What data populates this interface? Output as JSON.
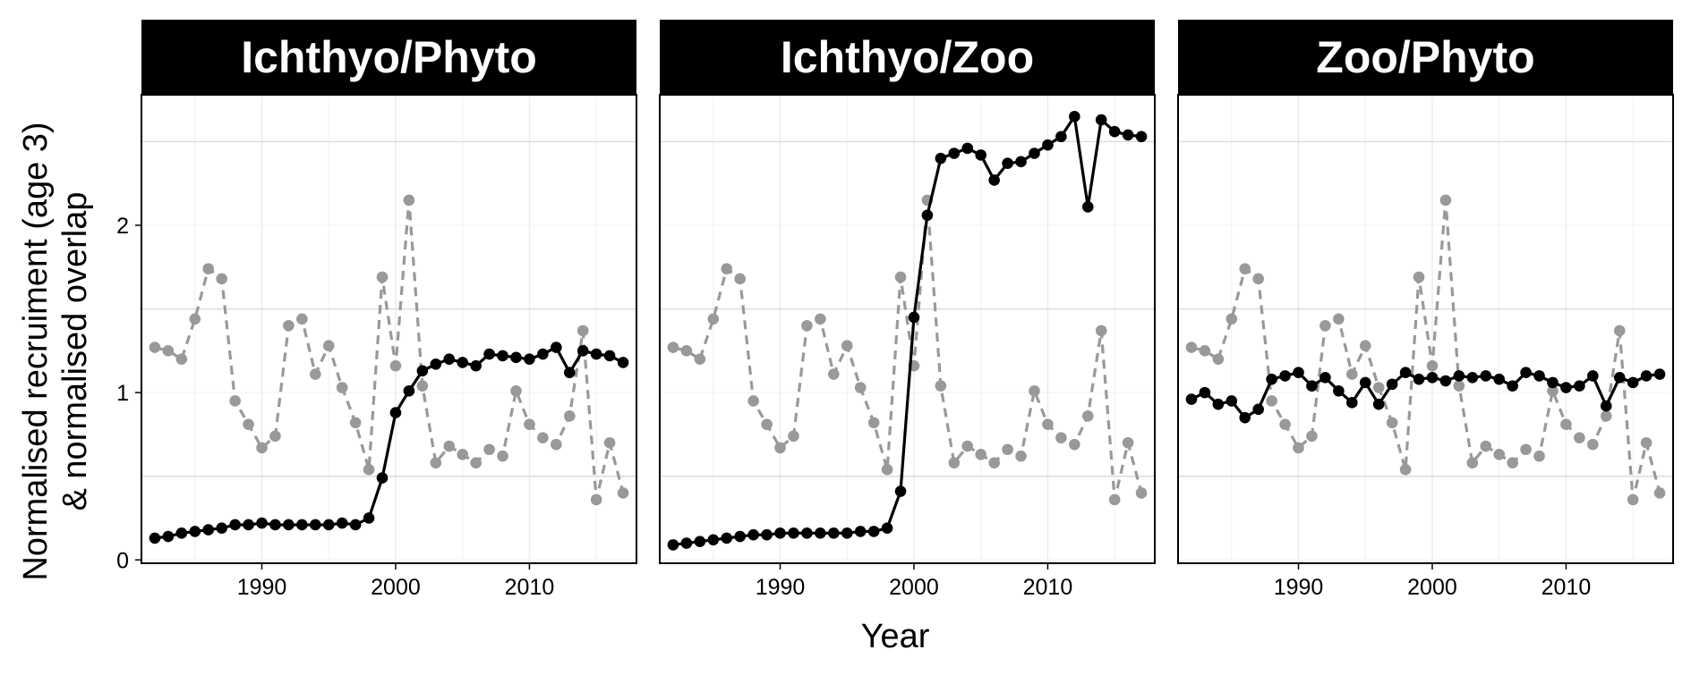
{
  "chart_data": {
    "type": "line",
    "xlabel": "Year",
    "ylabel_lines": [
      "Normalised recruiment (age 3)",
      "& normalised overlap"
    ],
    "xlim": [
      1981,
      2018
    ],
    "ylim": [
      -0.02,
      2.78
    ],
    "x_ticks": [
      1990,
      2000,
      2010
    ],
    "x_tick_labels": [
      "1990",
      "2000",
      "2010"
    ],
    "y_ticks": [
      0,
      1,
      2
    ],
    "y_tick_labels": [
      "0",
      "1",
      "2"
    ],
    "y_minor_gridlines": [
      0.5,
      1.5,
      2.5
    ],
    "colors": {
      "overlap": "#000000",
      "recruitment": "#999999",
      "strip_bg": "#000000",
      "strip_text": "#ffffff",
      "grid": "#d9d9d9"
    },
    "recruitment_series": {
      "name": "Normalised recruitment (age 3)",
      "style": "dashed",
      "x": [
        1982,
        1983,
        1984,
        1985,
        1986,
        1987,
        1988,
        1989,
        1990,
        1991,
        1992,
        1993,
        1994,
        1995,
        1996,
        1997,
        1998,
        1999,
        2000,
        2001,
        2002,
        2003,
        2004,
        2005,
        2006,
        2007,
        2008,
        2009,
        2010,
        2011,
        2012,
        2013,
        2014,
        2015,
        2016,
        2017
      ],
      "values": [
        1.27,
        1.25,
        1.2,
        1.44,
        1.74,
        1.68,
        0.95,
        0.81,
        0.67,
        0.74,
        1.4,
        1.44,
        1.11,
        1.28,
        1.03,
        0.82,
        0.54,
        1.69,
        1.16,
        2.15,
        1.04,
        0.58,
        0.68,
        0.63,
        0.58,
        0.66,
        0.62,
        1.01,
        0.81,
        0.73,
        0.69,
        0.86,
        1.37,
        0.36,
        0.7,
        0.4
      ]
    },
    "panels": [
      {
        "title": "Ichthyo/Phyto",
        "overlap_series": {
          "name": "Normalised overlap",
          "style": "solid",
          "x": [
            1982,
            1983,
            1984,
            1985,
            1986,
            1987,
            1988,
            1989,
            1990,
            1991,
            1992,
            1993,
            1994,
            1995,
            1996,
            1997,
            1998,
            1999,
            2000,
            2001,
            2002,
            2003,
            2004,
            2005,
            2006,
            2007,
            2008,
            2009,
            2010,
            2011,
            2012,
            2013,
            2014,
            2015,
            2016,
            2017
          ],
          "values": [
            0.13,
            0.14,
            0.16,
            0.17,
            0.18,
            0.19,
            0.21,
            0.21,
            0.22,
            0.21,
            0.21,
            0.21,
            0.21,
            0.21,
            0.22,
            0.21,
            0.25,
            0.49,
            0.88,
            1.01,
            1.13,
            1.17,
            1.2,
            1.18,
            1.16,
            1.23,
            1.22,
            1.21,
            1.2,
            1.23,
            1.27,
            1.12,
            1.25,
            1.23,
            1.22,
            1.18
          ]
        }
      },
      {
        "title": "Ichthyo/Zoo",
        "overlap_series": {
          "name": "Normalised overlap",
          "style": "solid",
          "x": [
            1982,
            1983,
            1984,
            1985,
            1986,
            1987,
            1988,
            1989,
            1990,
            1991,
            1992,
            1993,
            1994,
            1995,
            1996,
            1997,
            1998,
            1999,
            2000,
            2001,
            2002,
            2003,
            2004,
            2005,
            2006,
            2007,
            2008,
            2009,
            2010,
            2011,
            2012,
            2013,
            2014,
            2015,
            2016,
            2017
          ],
          "values": [
            0.09,
            0.1,
            0.11,
            0.12,
            0.13,
            0.14,
            0.15,
            0.15,
            0.16,
            0.16,
            0.16,
            0.16,
            0.16,
            0.16,
            0.17,
            0.17,
            0.19,
            0.41,
            1.45,
            2.06,
            2.4,
            2.43,
            2.46,
            2.42,
            2.27,
            2.37,
            2.38,
            2.43,
            2.48,
            2.53,
            2.65,
            2.11,
            2.63,
            2.56,
            2.54,
            2.53
          ]
        }
      },
      {
        "title": "Zoo/Phyto",
        "overlap_series": {
          "name": "Normalised overlap",
          "style": "solid",
          "x": [
            1982,
            1983,
            1984,
            1985,
            1986,
            1987,
            1988,
            1989,
            1990,
            1991,
            1992,
            1993,
            1994,
            1995,
            1996,
            1997,
            1998,
            1999,
            2000,
            2001,
            2002,
            2003,
            2004,
            2005,
            2006,
            2007,
            2008,
            2009,
            2010,
            2011,
            2012,
            2013,
            2014,
            2015,
            2016,
            2017
          ],
          "values": [
            0.96,
            1.0,
            0.93,
            0.95,
            0.85,
            0.9,
            1.08,
            1.1,
            1.12,
            1.04,
            1.09,
            1.01,
            0.94,
            1.06,
            0.93,
            1.05,
            1.12,
            1.08,
            1.09,
            1.07,
            1.1,
            1.09,
            1.1,
            1.08,
            1.04,
            1.12,
            1.1,
            1.06,
            1.03,
            1.04,
            1.1,
            0.92,
            1.09,
            1.06,
            1.1,
            1.11
          ]
        }
      }
    ]
  }
}
